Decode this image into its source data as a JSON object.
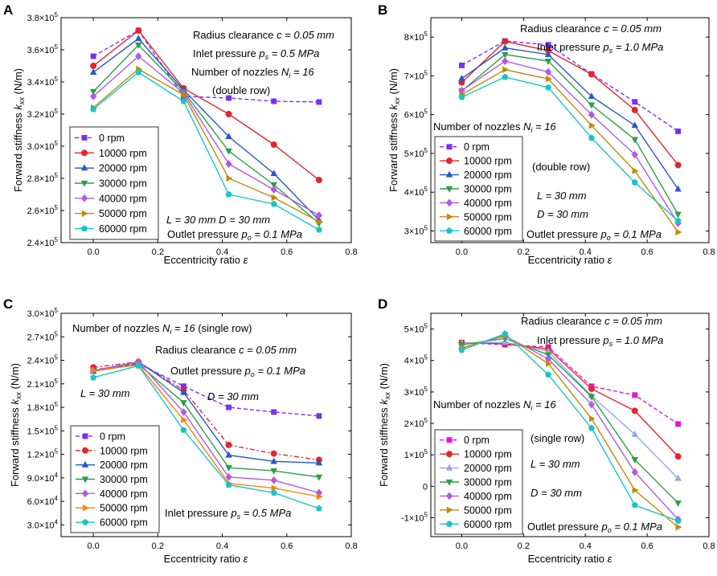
{
  "figure": {
    "x_labels": {
      "main": "Eccentricity ratio",
      "symbol": "ε"
    },
    "y_labels": {
      "main": "Forward stiffness",
      "k": "k",
      "sub": "xx",
      "unit": "(N/m)"
    }
  },
  "chart_data": [
    {
      "type": "line",
      "panel_label": "A",
      "x": [
        0.0,
        0.14,
        0.28,
        0.42,
        0.56,
        0.7
      ],
      "xlim": [
        -0.1,
        0.8
      ],
      "xticks": [
        "0.0",
        "0.2",
        "0.4",
        "0.6",
        "0.8"
      ],
      "xtick_values": [
        0.0,
        0.2,
        0.4,
        0.6,
        0.8
      ],
      "ylim": [
        240000,
        380000
      ],
      "ytick_values": [
        240000,
        260000,
        280000,
        300000,
        320000,
        340000,
        360000,
        380000
      ],
      "ytick_mantissa": [
        "2.4×10",
        "2.6×10",
        "2.8×10",
        "3.0×10",
        "3.2×10",
        "3.4×10",
        "3.6×10",
        "3.8×10"
      ],
      "ytick_exp": [
        "5",
        "5",
        "5",
        "5",
        "5",
        "5",
        "5",
        "5"
      ],
      "series": [
        {
          "name": "0 rpm",
          "color": "#7b2ff7",
          "marker": "square",
          "dash": "5,3",
          "values": [
            356000,
            372000,
            331000,
            330000,
            328000,
            327500
          ]
        },
        {
          "name": "10000 rpm",
          "color": "#e3262d",
          "marker": "circle",
          "dash": "",
          "values": [
            350000,
            372000,
            336000,
            320000,
            301000,
            279000
          ]
        },
        {
          "name": "20000 rpm",
          "color": "#2a55c7",
          "marker": "triangle-up",
          "dash": "",
          "values": [
            346000,
            367000,
            335000,
            306000,
            283000,
            254000
          ]
        },
        {
          "name": "30000 rpm",
          "color": "#2e9e46",
          "marker": "triangle-down",
          "dash": "",
          "values": [
            334000,
            363000,
            334000,
            297000,
            276000,
            252000
          ]
        },
        {
          "name": "40000 rpm",
          "color": "#b05be0",
          "marker": "diamond",
          "dash": "",
          "values": [
            331000,
            356000,
            333000,
            289000,
            273000,
            257000
          ]
        },
        {
          "name": "50000 rpm",
          "color": "#c08a0c",
          "marker": "triangle-right",
          "dash": "",
          "values": [
            324000,
            348000,
            332000,
            280000,
            268000,
            253000
          ]
        },
        {
          "name": "60000 rpm",
          "color": "#19c5c9",
          "marker": "pentagon",
          "dash": "",
          "values": [
            323000,
            346000,
            328000,
            270000,
            264000,
            248000
          ]
        }
      ]
    },
    {
      "type": "line",
      "panel_label": "B",
      "x": [
        0.0,
        0.14,
        0.28,
        0.42,
        0.56,
        0.7
      ],
      "xlim": [
        -0.1,
        0.8
      ],
      "xticks": [
        "0.0",
        "0.2",
        "0.4",
        "0.6",
        "0.8"
      ],
      "xtick_values": [
        0.0,
        0.2,
        0.4,
        0.6,
        0.8
      ],
      "ylim": [
        270000,
        850000
      ],
      "ytick_values": [
        300000,
        400000,
        500000,
        600000,
        700000,
        800000
      ],
      "ytick_mantissa": [
        "3×10",
        "4×10",
        "5×10",
        "6×10",
        "7×10",
        "8×10"
      ],
      "ytick_exp": [
        "5",
        "5",
        "5",
        "5",
        "5",
        "5"
      ],
      "series": [
        {
          "name": "0 rpm",
          "color": "#7b2ff7",
          "marker": "square",
          "dash": "5,3",
          "values": [
            727000,
            790000,
            780000,
            705000,
            633000,
            557000
          ]
        },
        {
          "name": "10000 rpm",
          "color": "#e3262d",
          "marker": "circle",
          "dash": "",
          "values": [
            683000,
            789000,
            765000,
            704000,
            612000,
            470000
          ]
        },
        {
          "name": "20000 rpm",
          "color": "#2a55c7",
          "marker": "triangle-up",
          "dash": "",
          "values": [
            693000,
            772000,
            755000,
            647000,
            572000,
            408000
          ]
        },
        {
          "name": "30000 rpm",
          "color": "#2e9e46",
          "marker": "triangle-down",
          "dash": "",
          "values": [
            661000,
            755000,
            738000,
            625000,
            536000,
            343000
          ]
        },
        {
          "name": "40000 rpm",
          "color": "#b05be0",
          "marker": "diamond",
          "dash": "",
          "values": [
            662000,
            738000,
            710000,
            600000,
            497000,
            320000
          ]
        },
        {
          "name": "50000 rpm",
          "color": "#c08a0c",
          "marker": "triangle-right",
          "dash": "",
          "values": [
            652000,
            716000,
            692000,
            572000,
            455000,
            297000
          ]
        },
        {
          "name": "60000 rpm",
          "color": "#19c5c9",
          "marker": "pentagon",
          "dash": "",
          "values": [
            645000,
            697000,
            670000,
            540000,
            425000,
            326000
          ]
        }
      ]
    },
    {
      "type": "line",
      "panel_label": "C",
      "x": [
        0.0,
        0.14,
        0.28,
        0.42,
        0.56,
        0.7
      ],
      "xlim": [
        -0.1,
        0.8
      ],
      "xticks": [
        "0.0",
        "0.2",
        "0.4",
        "0.6",
        "0.8"
      ],
      "xtick_values": [
        0.0,
        0.2,
        0.4,
        0.6,
        0.8
      ],
      "ylim": [
        15000,
        300000
      ],
      "ytick_values": [
        30000,
        60000,
        90000,
        120000,
        150000,
        180000,
        210000,
        240000,
        270000,
        300000
      ],
      "ytick_mantissa": [
        "3.0×10",
        "6.0×10",
        "9.0×10",
        "1.2×10",
        "1.5×10",
        "1.8×10",
        "2.1×10",
        "2.4×10",
        "2.7×10",
        "3.0×10"
      ],
      "ytick_exp": [
        "4",
        "4",
        "4",
        "5",
        "5",
        "5",
        "5",
        "5",
        "5",
        "5"
      ],
      "series": [
        {
          "name": "0 rpm",
          "color": "#7b2ff7",
          "marker": "square",
          "dash": "5,3",
          "values": [
            228000,
            236000,
            207000,
            180000,
            174000,
            169000
          ]
        },
        {
          "name": "10000 rpm",
          "color": "#e3262d",
          "marker": "circle",
          "dash": "6,3,2,3",
          "values": [
            231000,
            238000,
            202000,
            132000,
            121000,
            113000
          ]
        },
        {
          "name": "20000 rpm",
          "color": "#2a55c7",
          "marker": "triangle-up",
          "dash": "",
          "values": [
            226000,
            238000,
            199000,
            119000,
            111000,
            109000
          ]
        },
        {
          "name": "30000 rpm",
          "color": "#2e9e46",
          "marker": "triangle-down",
          "dash": "",
          "values": [
            226000,
            235000,
            186000,
            103000,
            99000,
            91000
          ]
        },
        {
          "name": "40000 rpm",
          "color": "#b05be0",
          "marker": "diamond",
          "dash": "",
          "values": [
            227000,
            238000,
            174000,
            91000,
            87000,
            71000
          ]
        },
        {
          "name": "50000 rpm",
          "color": "#ff7f0e",
          "marker": "triangle-right",
          "dash": "",
          "values": [
            227000,
            234000,
            164000,
            83000,
            77000,
            66000
          ]
        },
        {
          "name": "60000 rpm",
          "color": "#19c5c9",
          "marker": "pentagon",
          "dash": "",
          "values": [
            218000,
            233000,
            151000,
            81000,
            71000,
            51000
          ]
        }
      ]
    },
    {
      "type": "line",
      "panel_label": "D",
      "x": [
        0.0,
        0.14,
        0.28,
        0.42,
        0.56,
        0.7
      ],
      "xlim": [
        -0.1,
        0.8
      ],
      "xticks": [
        "0.0",
        "0.2",
        "0.4",
        "0.6",
        "0.8"
      ],
      "xtick_values": [
        0.0,
        0.2,
        0.4,
        0.6,
        0.8
      ],
      "ylim": [
        -160000,
        550000
      ],
      "ytick_values": [
        -100000,
        0,
        100000,
        200000,
        300000,
        400000,
        500000
      ],
      "ytick_mantissa": [
        "-1×10",
        "0",
        "1×10",
        "2×10",
        "3×10",
        "4×10",
        "5×10"
      ],
      "ytick_exp": [
        "5",
        "",
        "5",
        "5",
        "5",
        "5",
        "5"
      ],
      "series": [
        {
          "name": "0 rpm",
          "color": "#e316d8",
          "marker": "square",
          "dash": "5,3",
          "values": [
            457000,
            450000,
            443000,
            318000,
            290000,
            198000
          ]
        },
        {
          "name": "10000 rpm",
          "color": "#e3262d",
          "marker": "circle",
          "dash": "",
          "values": [
            456000,
            453000,
            437000,
            310000,
            240000,
            95000
          ]
        },
        {
          "name": "20000 rpm",
          "color": "#8fa8ee",
          "marker": "triangle-up",
          "dash": "",
          "values": [
            455000,
            458000,
            429000,
            288000,
            165000,
            25000
          ]
        },
        {
          "name": "30000 rpm",
          "color": "#2e9e46",
          "marker": "triangle-down",
          "dash": "",
          "values": [
            450000,
            470000,
            418000,
            285000,
            85000,
            -53000
          ]
        },
        {
          "name": "40000 rpm",
          "color": "#b05be0",
          "marker": "diamond",
          "dash": "",
          "values": [
            440000,
            478000,
            405000,
            260000,
            45000,
            -105000
          ]
        },
        {
          "name": "50000 rpm",
          "color": "#c08a0c",
          "marker": "triangle-right",
          "dash": "",
          "values": [
            440000,
            480000,
            390000,
            215000,
            -12000,
            -130000
          ]
        },
        {
          "name": "60000 rpm",
          "color": "#19c5c9",
          "marker": "pentagon",
          "dash": "",
          "values": [
            433000,
            485000,
            355000,
            185000,
            -60000,
            -110000
          ]
        }
      ]
    }
  ],
  "annotations": {
    "A": {
      "radius_pre": "Radius clearance ",
      "radius_var": "c = 0.05 mm",
      "inlet_pre": "Inlet pressure ",
      "inlet_p": "p",
      "inlet_sub": "s",
      "inlet_val": " = 0.5 MPa",
      "nozzles_pre": "Number of nozzles ",
      "nozzles_n": "N",
      "nozzles_sub": "i",
      "nozzles_val": " = 16",
      "row": "(double row)",
      "ld": "L = 30 mm  D = 30 mm",
      "outlet_pre": "Outlet pressure ",
      "outlet_p": "p",
      "outlet_sub": "o",
      "outlet_val": " = 0.1 MPa"
    },
    "B": {
      "radius_pre": "Radius clearance ",
      "radius_var": "c = 0.05 mm",
      "inlet_pre": "Inlet pressure ",
      "inlet_p": "p",
      "inlet_sub": "s",
      "inlet_val": " = 1.0 MPa",
      "nozzles_pre": "Number of nozzles ",
      "nozzles_n": "N",
      "nozzles_sub": "i",
      "nozzles_val": " = 16",
      "row": "(double row)",
      "l": "L = 30 mm",
      "d": "D = 30 mm",
      "outlet_pre": "Outlet pressure ",
      "outlet_p": "p",
      "outlet_sub": "o",
      "outlet_val": " = 0.1 MPa"
    },
    "C": {
      "nozzles_pre": "Number of nozzles ",
      "nozzles_n": "N",
      "nozzles_sub": "i",
      "nozzles_val": " = 16",
      "row": "(single row)",
      "radius_pre": "Radius clearance ",
      "radius_var": "c = 0.05 mm",
      "outlet_pre": "Outlet pressure ",
      "outlet_p": "p",
      "outlet_sub": "o",
      "outlet_val": " = 0.1 MPa",
      "l": "L = 30 mm",
      "d": "D = 30 mm",
      "inlet_pre": "Inlet pressure ",
      "inlet_p": "p",
      "inlet_sub": "s",
      "inlet_val": " = 0.5 MPa"
    },
    "D": {
      "radius_pre": "Radius clearance ",
      "radius_var": "c = 0.05 mm",
      "inlet_pre": "Inlet pressure ",
      "inlet_p": "p",
      "inlet_sub": "s",
      "inlet_val": " = 1.0 MPa",
      "nozzles_pre": "Number of nozzles ",
      "nozzles_n": "N",
      "nozzles_sub": "i",
      "nozzles_val": " = 16",
      "row": "(single row)",
      "l": "L = 30 mm",
      "d": "D = 30 mm",
      "outlet_pre": "Outlet pressure ",
      "outlet_p": "p",
      "outlet_sub": "o",
      "outlet_val": " = 0.1 MPa"
    }
  }
}
